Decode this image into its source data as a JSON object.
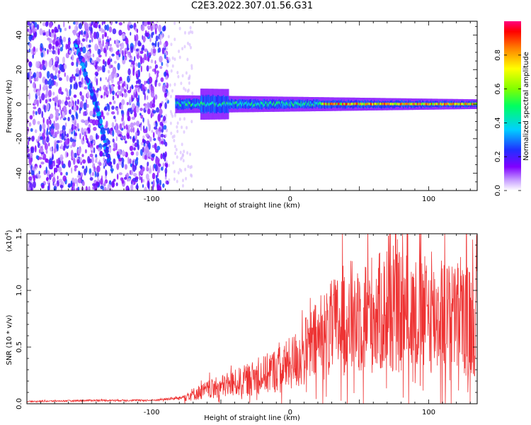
{
  "title": "C2E3.2022.307.01.56.G31",
  "chart_data": [
    {
      "type": "heatmap",
      "xlabel": "Height of straight line (km)",
      "ylabel": "Frequency (Hz)",
      "xlim": [
        -190,
        135
      ],
      "ylim": [
        -50,
        48
      ],
      "xticks": [
        -100,
        0,
        100
      ],
      "yticks": [
        -40,
        -20,
        0,
        20,
        40
      ],
      "colorbar": {
        "label": "Normalized spectral amplitude",
        "range": [
          0.0,
          1.0
        ],
        "ticks": [
          "0.0",
          "0.2",
          "0.4",
          "0.6",
          "0.8"
        ]
      },
      "features": {
        "noise_region_x": [
          -190,
          -78
        ],
        "diagonal_track": {
          "x": [
            -155,
            -140,
            -130
          ],
          "y": [
            35,
            0,
            -35
          ]
        },
        "carrier_band": {
          "x": [
            -83,
            135
          ],
          "y": 0,
          "halfwidth_hz": 4
        }
      }
    },
    {
      "type": "line",
      "xlabel": "Height of straight line (km)",
      "ylabel": "SNR (10 * v/v)",
      "multiplier": "(x10",
      "multiplier_exp": "4",
      "multiplier_close": ")",
      "xlim": [
        -190,
        135
      ],
      "ylim": [
        0,
        1.5
      ],
      "xticks": [
        -100,
        0,
        100
      ],
      "yticks": [
        "0.0",
        "0.5",
        "1.0",
        "1.5"
      ],
      "color": "#ee3333",
      "series": [
        {
          "x": [
            -190,
            -140,
            -100,
            -80,
            -60,
            -40,
            -20,
            0,
            20,
            40,
            60,
            80,
            100,
            120,
            135
          ],
          "y": [
            0.02,
            0.03,
            0.03,
            0.05,
            0.12,
            0.18,
            0.25,
            0.35,
            0.55,
            0.75,
            0.8,
            0.8,
            0.78,
            0.75,
            0.72
          ]
        }
      ]
    }
  ]
}
